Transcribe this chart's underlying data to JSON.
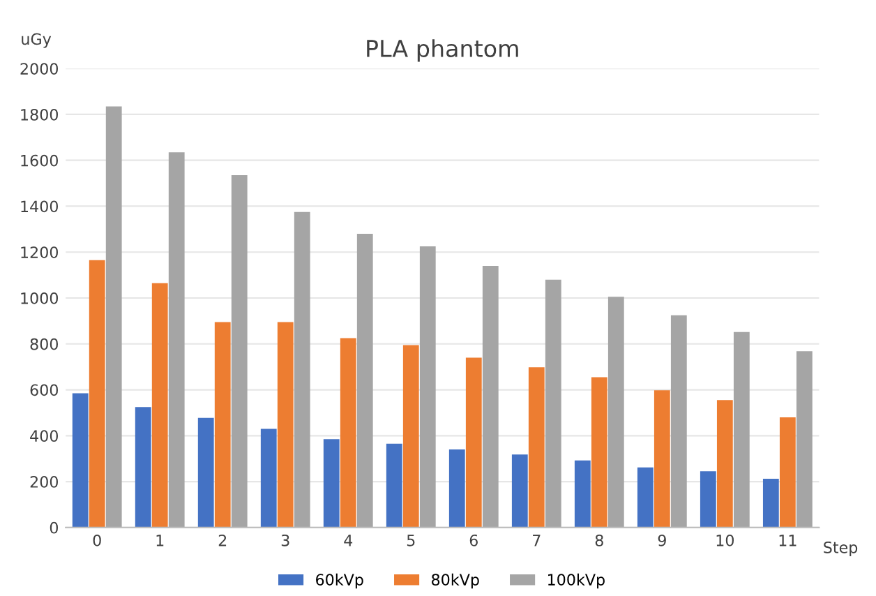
{
  "chart_data": {
    "type": "bar",
    "title": "PLA phantom",
    "xlabel": "Step",
    "ylabel": "uGy",
    "categories": [
      "0",
      "1",
      "2",
      "3",
      "4",
      "5",
      "6",
      "7",
      "8",
      "9",
      "10",
      "11"
    ],
    "series": [
      {
        "name": "60kVp",
        "color": "#4472c4",
        "values": [
          585,
          525,
          478,
          430,
          385,
          365,
          340,
          318,
          292,
          262,
          245,
          212
        ]
      },
      {
        "name": "80kVp",
        "color": "#ed7d31",
        "values": [
          1165,
          1065,
          895,
          895,
          825,
          795,
          740,
          698,
          655,
          598,
          555,
          480
        ]
      },
      {
        "name": "100kVp",
        "color": "#a5a5a5",
        "values": [
          1835,
          1635,
          1535,
          1375,
          1280,
          1225,
          1140,
          1080,
          1005,
          925,
          852,
          768
        ]
      }
    ],
    "ylim": [
      0,
      2000
    ],
    "yticks": [
      0,
      200,
      400,
      600,
      800,
      1000,
      1200,
      1400,
      1600,
      1800,
      2000
    ],
    "grid": "y",
    "legend": "bottom"
  }
}
